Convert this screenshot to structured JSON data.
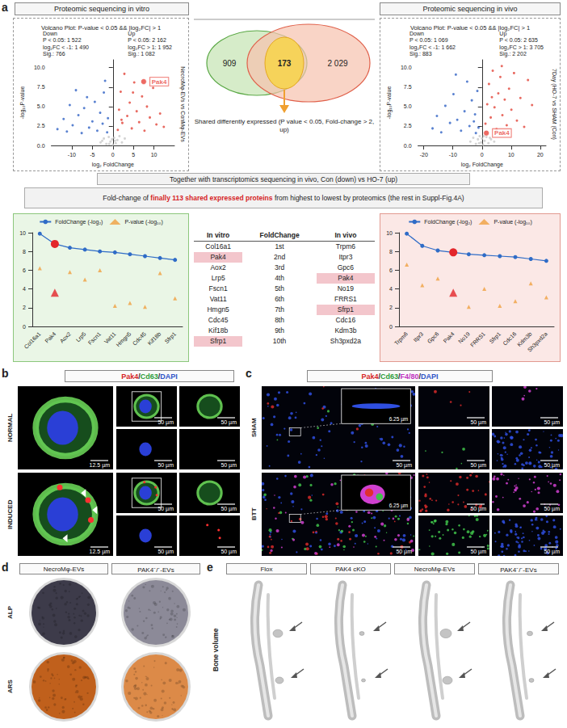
{
  "figure": {
    "a": {
      "letter": "a",
      "in_vitro_header": "Proteomic sequencing in vitro",
      "in_vivo_header": "Proteomic sequencing in vivo",
      "venn": {
        "in_vitro_only": "909",
        "shared": "173",
        "in_vivo_only": "2 029",
        "caption": "Shared differently expressed (P value < 0.05, Fold-change > 2, up)"
      },
      "banner_top": "Together with transcriptomics sequencing in vivo, Con (down) vs HO-7 (up)",
      "banner_bottom": {
        "before": "Fold-change of ",
        "highlight": "finally 113 shared expressed proteins",
        "after": " from highest to lowest by proteomics (the rest in Suppl-Fig.4A)"
      },
      "table": {
        "header": [
          "In vitro",
          "FoldChange",
          "In vivo"
        ],
        "rows": [
          [
            "Col16a1",
            "1st",
            "Trpm6"
          ],
          [
            "Pak4",
            "2nd",
            "Itpr3"
          ],
          [
            "Aox2",
            "3rd",
            "Gpc6"
          ],
          [
            "Lrp5",
            "4th",
            "Pak4"
          ],
          [
            "Fscn1",
            "5th",
            "No19"
          ],
          [
            "Vat11",
            "6th",
            "FRRS1"
          ],
          [
            "Hmgn5",
            "7th",
            "Sfrp1"
          ],
          [
            "Cdc45",
            "8th",
            "Cdc16"
          ],
          [
            "Kif18b",
            "9th",
            "Kdm3b"
          ],
          [
            "Sfrp1",
            "10th",
            "Sh3pxd2a"
          ]
        ],
        "highlighted": [
          "Pak4",
          "Sfrp1"
        ]
      }
    },
    "b": {
      "letter": "b",
      "stain": [
        {
          "text": "Pak4",
          "color": "#d61f26"
        },
        {
          "text": "/",
          "color": "#222222"
        },
        {
          "text": "Cd63",
          "color": "#2e9e3a"
        },
        {
          "text": "/",
          "color": "#222222"
        },
        {
          "text": "DAPI",
          "color": "#2f55c8"
        }
      ],
      "rows": [
        "NORMAL",
        "INDUCED"
      ],
      "scale_large": "12.5 µm",
      "scale_small": "50 µm"
    },
    "c": {
      "letter": "c",
      "stain": [
        {
          "text": "Pak4",
          "color": "#d61f26"
        },
        {
          "text": "/",
          "color": "#222222"
        },
        {
          "text": "Cd63",
          "color": "#2e9e3a"
        },
        {
          "text": "/",
          "color": "#222222"
        },
        {
          "text": "F4/80",
          "color": "#c030c0"
        },
        {
          "text": "/",
          "color": "#222222"
        },
        {
          "text": "DAPI",
          "color": "#2f55c8"
        }
      ],
      "rows": [
        "SHAM",
        "BTT"
      ],
      "scale_inset": "6.25 µm",
      "scale_small": "50 µm"
    },
    "d": {
      "letter": "d",
      "columns": [
        "NecroMφ-EVs",
        "PAK4⁻/⁻-EVs"
      ],
      "rows": [
        "ALP",
        "ARS"
      ]
    },
    "e": {
      "letter": "e",
      "side_label": "Bone volume",
      "columns": [
        "Flox",
        "PAK4 cKO",
        "NecroMφ-EVs",
        "PAK4⁻/⁻-EVs"
      ]
    }
  },
  "chart_data": [
    {
      "type": "scatter",
      "title": "Volcano Plot: P-value < 0.05 && |log₂FC| > 1",
      "x_label": "log₂ FoldChange",
      "y_label": "-log₁₀P-value",
      "side_label": "NecroMφ-EVs vs ConMφ-EVs",
      "annotations": {
        "down": [
          "Down",
          "P < 0.05: 1 522",
          "log₂FC < -1: 1 490",
          "Sig.: 766"
        ],
        "up": [
          "Up",
          "P < 0.05: 2 162",
          "log₂FC > 1: 1 952",
          "Sig.: 1 082"
        ]
      },
      "highlight": {
        "text": "Pak4",
        "x": 7.5,
        "y": 8.2,
        "color": "#e8453c"
      },
      "xlim": [
        -15,
        15
      ],
      "xticks": [
        -10,
        -5,
        0,
        5,
        10
      ],
      "ylim": [
        0,
        11
      ],
      "yticks": [
        {
          "value": 0,
          "label": "0.0"
        },
        2.5,
        {
          "value": 5,
          "label": "5.0"
        },
        7.5,
        {
          "value": 10,
          "label": "10.0"
        }
      ],
      "grid": false,
      "series": [
        {
          "name": "Down",
          "color": "#2f62c4",
          "values": [
            [
              -13.5,
              2.1
            ],
            [
              -12,
              3.4
            ],
            [
              -11.2,
              1.8
            ],
            [
              -10.5,
              5.2
            ],
            [
              -9.8,
              2.6
            ],
            [
              -9,
              7.1
            ],
            [
              -8.4,
              3.9
            ],
            [
              -7.6,
              1.6
            ],
            [
              -7,
              4.8
            ],
            [
              -6.3,
              6.2
            ],
            [
              -5.8,
              2.3
            ],
            [
              -5,
              3.1
            ],
            [
              -4.4,
              5.6
            ],
            [
              -3.8,
              1.9
            ],
            [
              -3.1,
              4.2
            ],
            [
              -2.5,
              2.8
            ],
            [
              -1.9,
              8.3
            ],
            [
              -1.4,
              1.7
            ],
            [
              -1.2,
              3.5
            ],
            [
              -2.2,
              6.8
            ]
          ]
        },
        {
          "name": "Up",
          "color": "#e2453a",
          "values": [
            [
              1.2,
              2.0
            ],
            [
              1.5,
              4.6
            ],
            [
              1.9,
              6.9
            ],
            [
              2.3,
              2.9
            ],
            [
              2.8,
              9.2
            ],
            [
              3.5,
              3.8
            ],
            [
              4.1,
              5.5
            ],
            [
              4.6,
              2.2
            ],
            [
              5.2,
              8.1
            ],
            [
              5.8,
              4.4
            ],
            [
              6.4,
              3.0
            ],
            [
              7.1,
              6.3
            ],
            [
              7.7,
              1.9
            ],
            [
              8.3,
              5.0
            ],
            [
              9,
              3.6
            ],
            [
              9.8,
              7.4
            ],
            [
              10.6,
              2.7
            ],
            [
              11.5,
              4.1
            ],
            [
              12.4,
              2.4
            ],
            [
              2.1,
              3.3
            ],
            [
              4.9,
              6.8
            ]
          ]
        },
        {
          "color": "#c9c9c9",
          "values": [
            [
              -3,
              0.4
            ],
            [
              -2.2,
              0.9
            ],
            [
              -1.6,
              0.2
            ],
            [
              -1,
              1.1
            ],
            [
              -0.6,
              0.5
            ],
            [
              -0.2,
              0.8
            ],
            [
              0,
              0.1
            ],
            [
              0.3,
              1.0
            ],
            [
              0.7,
              0.3
            ],
            [
              1.1,
              0.7
            ],
            [
              1.6,
              1.2
            ],
            [
              2.2,
              0.4
            ],
            [
              2.9,
              0.9
            ],
            [
              -0.9,
              0.2
            ],
            [
              0.5,
              0.6
            ],
            [
              -2.6,
              0.6
            ]
          ]
        }
      ]
    },
    {
      "type": "scatter",
      "title": "Volcano Plot: P-value < 0.05 && |log₂FC| > 1",
      "x_label": "log₂ FoldChange",
      "y_label": "-log₁₀P-value",
      "side_label": "7Day (HO-7 vs SHAM (Con)",
      "annotations": {
        "down": [
          "Down",
          "P < 0.05: 1 069",
          "log₂FC < -1: 1 662",
          "Sig.: 883"
        ],
        "up": [
          "Up",
          "P < 0.05: 2 635",
          "log₂FC > 1: 3 705",
          "Sig.: 2 202"
        ]
      },
      "highlight": {
        "text": "Pak4",
        "x": 1.5,
        "y": 1.6,
        "color": "#e8453c"
      },
      "xlim": [
        -22,
        22
      ],
      "xticks": [
        -20,
        -10,
        0,
        10,
        20
      ],
      "ylim": [
        0,
        11
      ],
      "yticks": [
        {
          "value": 0,
          "label": "0.0"
        },
        2.5,
        {
          "value": 5,
          "label": "5.0"
        },
        7.5,
        {
          "value": 10,
          "label": "10.0"
        }
      ],
      "grid": false,
      "series": [
        {
          "name": "Down",
          "color": "#2f62c4",
          "values": [
            [
              -17,
              2.2
            ],
            [
              -15.5,
              3.8
            ],
            [
              -14,
              1.7
            ],
            [
              -12.6,
              5.1
            ],
            [
              -11,
              2.9
            ],
            [
              -9.8,
              6.6
            ],
            [
              -8.5,
              3.3
            ],
            [
              -7.2,
              1.9
            ],
            [
              -6,
              4.4
            ],
            [
              -5.1,
              8.2
            ],
            [
              -4.3,
              2.5
            ],
            [
              -3.5,
              5.8
            ],
            [
              -2.8,
              3.1
            ],
            [
              -2.1,
              1.6
            ],
            [
              -1.6,
              7.0
            ],
            [
              -1.2,
              2.3
            ],
            [
              -9,
              9.1
            ],
            [
              -2.4,
              4.0
            ]
          ]
        },
        {
          "name": "Up",
          "color": "#e2453a",
          "values": [
            [
              1.2,
              2.8
            ],
            [
              1.8,
              5.3
            ],
            [
              2.4,
              7.9
            ],
            [
              3,
              3.6
            ],
            [
              3.7,
              9.6
            ],
            [
              4.3,
              4.9
            ],
            [
              5,
              2.1
            ],
            [
              5.6,
              6.7
            ],
            [
              6.3,
              8.8
            ],
            [
              7,
              3.9
            ],
            [
              7.8,
              5.9
            ],
            [
              8.5,
              2.6
            ],
            [
              9.3,
              7.3
            ],
            [
              10.1,
              4.6
            ],
            [
              11,
              9.3
            ],
            [
              12,
              3.2
            ],
            [
              13.2,
              6.1
            ],
            [
              14.5,
              2.4
            ],
            [
              15.8,
              8.4
            ],
            [
              17.2,
              5.2
            ],
            [
              3.4,
              6.2
            ],
            [
              6.8,
              10.2
            ]
          ]
        },
        {
          "color": "#c9c9c9",
          "values": [
            [
              -4,
              0.5
            ],
            [
              -3,
              1.0
            ],
            [
              -2.1,
              0.2
            ],
            [
              -1.4,
              0.8
            ],
            [
              -0.8,
              1.2
            ],
            [
              -0.3,
              0.4
            ],
            [
              0,
              0.9
            ],
            [
              0.4,
              0.1
            ],
            [
              0.9,
              0.6
            ],
            [
              1.5,
              1.1
            ],
            [
              2.2,
              0.3
            ],
            [
              3.1,
              0.8
            ],
            [
              4.2,
              0.5
            ],
            [
              -1,
              0.3
            ],
            [
              0.6,
              1.2
            ],
            [
              2.7,
              1.0
            ]
          ]
        }
      ]
    },
    {
      "type": "line",
      "categories": [
        "Col16a1",
        "Pak4",
        "Aox2",
        "Lrp5",
        "Fscn1",
        "Vat11",
        "Hmgn5",
        "Cdc45",
        "Kif18b",
        "Sfrp1"
      ],
      "ylim": [
        0,
        10
      ],
      "yticks": [
        0,
        2,
        4,
        6,
        8,
        10
      ],
      "grid": false,
      "legend": "top",
      "series": [
        {
          "name": "FoldChange (-log₂)",
          "type": "line",
          "marker": "circle",
          "color": "#2f6cc7",
          "colors": [
            "#2f6cc7",
            "#e3262b",
            "#2f6cc7",
            "#2f6cc7",
            "#2f6cc7",
            "#2f6cc7",
            "#2f6cc7",
            "#2f6cc7",
            "#2f6cc7",
            "#2f6cc7"
          ],
          "values": [
            9.9,
            8.8,
            8.4,
            8.2,
            8.0,
            7.9,
            7.7,
            7.5,
            7.3,
            7.1
          ]
        },
        {
          "name": "P-value (-log₁₀)",
          "type": "scatter",
          "marker": "triangle",
          "color": "#f0a040",
          "colors": [
            "#f0a040",
            "#e3262b",
            "#f0a040",
            "#f0a040",
            "#f0a040",
            "#f0a040",
            "#f0a040",
            "#f0a040",
            "#f0a040",
            "#f0a040"
          ],
          "values": [
            6.2,
            3.6,
            5.8,
            5.0,
            6.0,
            2.2,
            2.5,
            2.1,
            5.7,
            3.0
          ]
        }
      ]
    },
    {
      "type": "line",
      "categories": [
        "Trpm6",
        "Itpr3",
        "Gpc6",
        "Pak4",
        "No19",
        "FRRS1",
        "Sfrp1",
        "Cdc16",
        "Kdm3b",
        "Sh3pxd2a"
      ],
      "ylim": [
        0,
        10
      ],
      "yticks": [
        0,
        2,
        4,
        6,
        8,
        10
      ],
      "grid": false,
      "legend": "top",
      "series": [
        {
          "name": "FoldChange (-log₂)",
          "type": "line",
          "marker": "circle",
          "color": "#2f6cc7",
          "colors": [
            "#2f6cc7",
            "#2f6cc7",
            "#2f6cc7",
            "#e3262b",
            "#2f6cc7",
            "#2f6cc7",
            "#2f6cc7",
            "#2f6cc7",
            "#2f6cc7",
            "#2f6cc7"
          ],
          "values": [
            9.9,
            8.6,
            8.1,
            7.9,
            7.7,
            7.6,
            7.5,
            7.4,
            7.2,
            7.0
          ]
        },
        {
          "name": "P-value (-log₁₀)",
          "type": "scatter",
          "marker": "triangle",
          "color": "#f0a040",
          "colors": [
            "#f0a040",
            "#f0a040",
            "#f0a040",
            "#e3262b",
            "#f0a040",
            "#f0a040",
            "#f0a040",
            "#f0a040",
            "#f0a040",
            "#f0a040"
          ],
          "values": [
            6.6,
            4.4,
            5.1,
            3.6,
            2.1,
            4.0,
            2.2,
            2.7,
            4.6,
            3.1
          ]
        }
      ]
    }
  ]
}
